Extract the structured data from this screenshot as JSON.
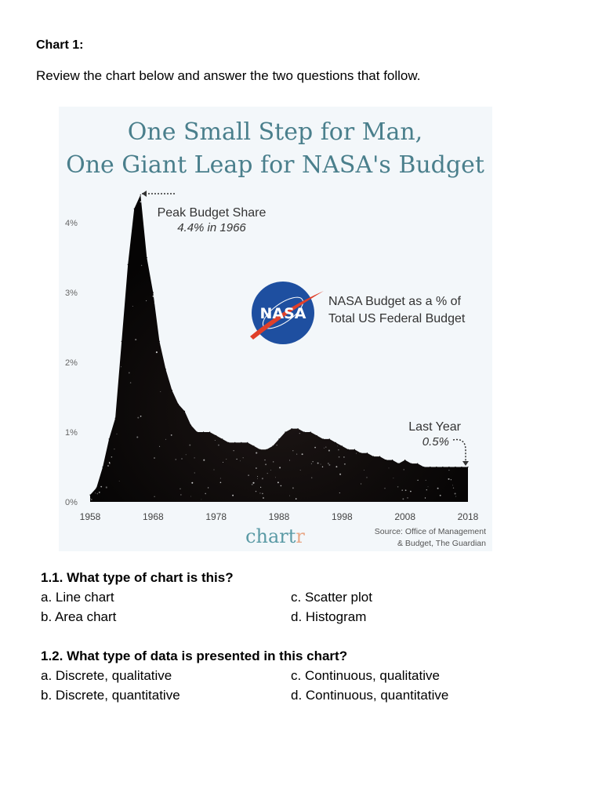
{
  "document": {
    "heading": "Chart 1:",
    "instruction": "Review the chart below and answer the two questions that follow."
  },
  "questions": [
    {
      "title": "1.1. What type of chart is this?",
      "options": [
        "a. Line chart",
        "b. Area chart",
        "c. Scatter plot",
        "d. Histogram"
      ]
    },
    {
      "title": "1.2. What type of data is presented in this chart?",
      "options": [
        "a. Discrete, qualitative",
        "b. Discrete, quantitative",
        "c. Continuous, qualitative",
        "d. Continuous, quantitative"
      ]
    }
  ],
  "colors": {
    "title": "#4a7f8c",
    "fill": "#0a0808",
    "axis_text": "#666666",
    "annotation_text": "#333333",
    "chartr_teal": "#5a9aa5",
    "chartr_accent": "#e8a888",
    "nasa_blue": "#1e4fa0",
    "nasa_red": "#e0402a",
    "card_bg": "#f3f7fa"
  },
  "chart_data": {
    "type": "area",
    "title": "One Small Step for Man, One Giant Leap for NASA's Budget",
    "title_lines": [
      "One Small Step for Man,",
      "One Giant Leap for NASA's Budget"
    ],
    "xlabel": "",
    "ylabel": "",
    "legend_lines": [
      "NASA Budget as a % of",
      "Total US Federal Budget"
    ],
    "logo": "NASA",
    "brand": {
      "main": "chart",
      "accent": "r"
    },
    "source_lines": [
      "Source: Office of Management",
      "& Budget, The Guardian"
    ],
    "xlim": [
      1958,
      2018
    ],
    "ylim": [
      0,
      4.5
    ],
    "x_ticks": [
      1958,
      1968,
      1978,
      1988,
      1998,
      2008,
      2018
    ],
    "x_tick_labels": [
      "1958",
      "1968",
      "1978",
      "1988",
      "1998",
      "2008",
      "2018"
    ],
    "y_ticks": [
      0,
      1,
      2,
      3,
      4
    ],
    "y_tick_labels": [
      "0%",
      "1%",
      "2%",
      "3%",
      "4%"
    ],
    "grid": false,
    "annotations": [
      {
        "name": "peak",
        "x": 1966,
        "y": 4.4,
        "lines": [
          "Peak Budget Share",
          "4.4% in 1966"
        ]
      },
      {
        "name": "last-year",
        "x": 2018,
        "y": 0.5,
        "lines": [
          "Last Year",
          "0.5%"
        ]
      }
    ],
    "x": [
      1958,
      1959,
      1960,
      1961,
      1962,
      1963,
      1964,
      1965,
      1966,
      1967,
      1968,
      1969,
      1970,
      1971,
      1972,
      1973,
      1974,
      1975,
      1976,
      1977,
      1978,
      1979,
      1980,
      1981,
      1982,
      1983,
      1984,
      1985,
      1986,
      1987,
      1988,
      1989,
      1990,
      1991,
      1992,
      1993,
      1994,
      1995,
      1996,
      1997,
      1998,
      1999,
      2000,
      2001,
      2002,
      2003,
      2004,
      2005,
      2006,
      2007,
      2008,
      2009,
      2010,
      2011,
      2012,
      2013,
      2014,
      2015,
      2016,
      2017,
      2018
    ],
    "values": [
      0.1,
      0.2,
      0.5,
      0.9,
      1.2,
      2.3,
      3.4,
      4.2,
      4.4,
      3.5,
      3.0,
      2.3,
      1.9,
      1.6,
      1.4,
      1.3,
      1.1,
      1.0,
      1.0,
      1.0,
      0.95,
      0.9,
      0.85,
      0.85,
      0.85,
      0.85,
      0.8,
      0.75,
      0.75,
      0.8,
      0.9,
      1.0,
      1.05,
      1.05,
      1.0,
      1.0,
      0.95,
      0.9,
      0.9,
      0.85,
      0.8,
      0.75,
      0.75,
      0.7,
      0.7,
      0.65,
      0.65,
      0.6,
      0.6,
      0.55,
      0.6,
      0.55,
      0.55,
      0.5,
      0.5,
      0.5,
      0.5,
      0.5,
      0.5,
      0.5,
      0.5
    ]
  }
}
